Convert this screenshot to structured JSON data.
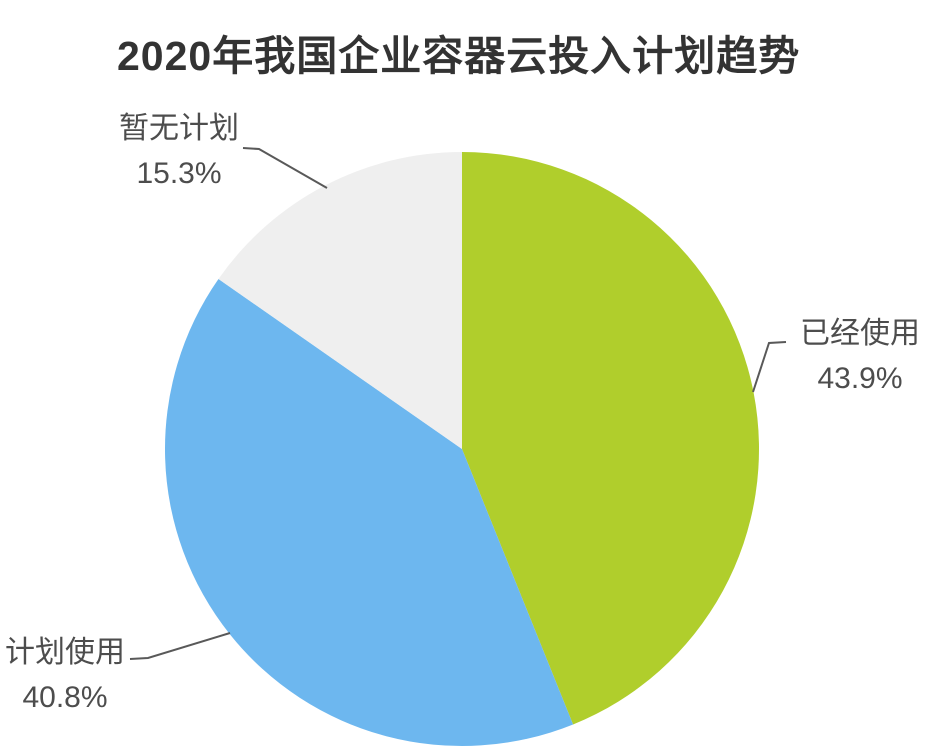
{
  "title": "2020年我国企业容器云投入计划趋势",
  "colors": {
    "background": "#ffffff",
    "title_text": "#333333",
    "label_text": "#4d4d4d",
    "leader_line": "#595959",
    "slice_green": "#b0ce2c",
    "slice_blue": "#6db7ef",
    "slice_gray": "#efefef"
  },
  "chart_data": {
    "type": "pie",
    "title": "2020年我国企业容器云投入计划趋势",
    "start_angle": "12-o'clock",
    "direction": "clockwise",
    "legend": "none",
    "label_style": "outside-with-leader-lines",
    "total": 100.0,
    "segments": [
      {
        "id": "used",
        "label": "已经使用",
        "value": 43.9,
        "percent_label": "43.9%",
        "color": "#b0ce2c",
        "label_position": "right"
      },
      {
        "id": "planned",
        "label": "计划使用",
        "value": 40.8,
        "percent_label": "40.8%",
        "color": "#6db7ef",
        "label_position": "bottom-left"
      },
      {
        "id": "no-plan",
        "label": "暂无计划",
        "value": 15.3,
        "percent_label": "15.3%",
        "color": "#efefef",
        "label_position": "top-left"
      }
    ]
  }
}
